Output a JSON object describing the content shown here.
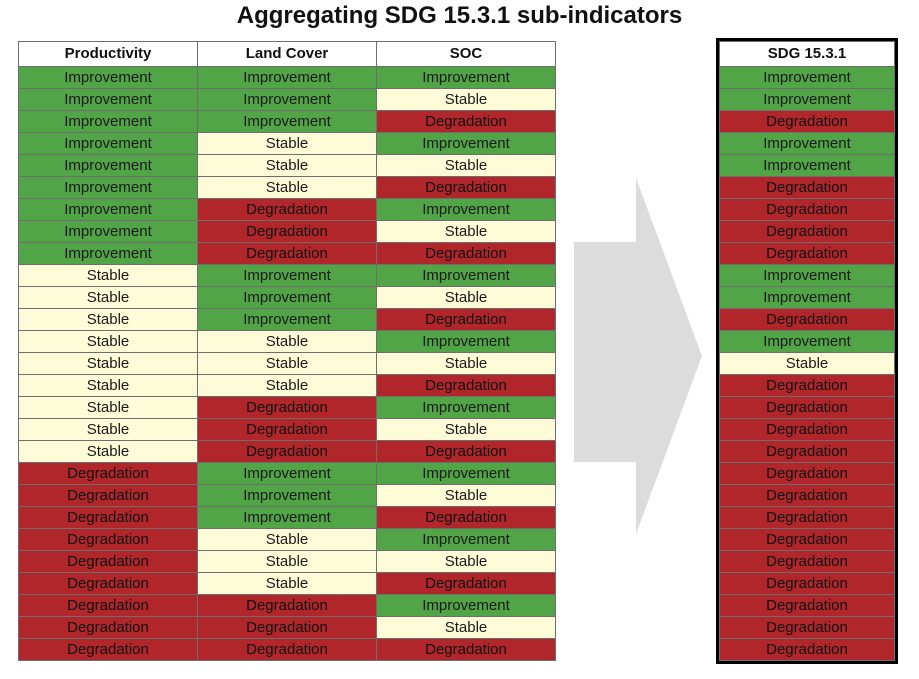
{
  "title": "Aggregating SDG 15.3.1 sub-indicators",
  "headers": [
    "Productivity",
    "Land Cover",
    "SOC"
  ],
  "result_header": "SDG 15.3.1",
  "colors": {
    "Improvement": "#51a546",
    "Stable": "#fefcd8",
    "Degradation": "#b1262a",
    "arrow": "#dcdcdc"
  },
  "rows": [
    [
      "Improvement",
      "Improvement",
      "Improvement"
    ],
    [
      "Improvement",
      "Improvement",
      "Stable"
    ],
    [
      "Improvement",
      "Improvement",
      "Degradation"
    ],
    [
      "Improvement",
      "Stable",
      "Improvement"
    ],
    [
      "Improvement",
      "Stable",
      "Stable"
    ],
    [
      "Improvement",
      "Stable",
      "Degradation"
    ],
    [
      "Improvement",
      "Degradation",
      "Improvement"
    ],
    [
      "Improvement",
      "Degradation",
      "Stable"
    ],
    [
      "Improvement",
      "Degradation",
      "Degradation"
    ],
    [
      "Stable",
      "Improvement",
      "Improvement"
    ],
    [
      "Stable",
      "Improvement",
      "Stable"
    ],
    [
      "Stable",
      "Improvement",
      "Degradation"
    ],
    [
      "Stable",
      "Stable",
      "Improvement"
    ],
    [
      "Stable",
      "Stable",
      "Stable"
    ],
    [
      "Stable",
      "Stable",
      "Degradation"
    ],
    [
      "Stable",
      "Degradation",
      "Improvement"
    ],
    [
      "Stable",
      "Degradation",
      "Stable"
    ],
    [
      "Stable",
      "Degradation",
      "Degradation"
    ],
    [
      "Degradation",
      "Improvement",
      "Improvement"
    ],
    [
      "Degradation",
      "Improvement",
      "Stable"
    ],
    [
      "Degradation",
      "Improvement",
      "Degradation"
    ],
    [
      "Degradation",
      "Stable",
      "Improvement"
    ],
    [
      "Degradation",
      "Stable",
      "Stable"
    ],
    [
      "Degradation",
      "Stable",
      "Degradation"
    ],
    [
      "Degradation",
      "Degradation",
      "Improvement"
    ],
    [
      "Degradation",
      "Degradation",
      "Stable"
    ],
    [
      "Degradation",
      "Degradation",
      "Degradation"
    ]
  ],
  "results": [
    "Improvement",
    "Improvement",
    "Degradation",
    "Improvement",
    "Improvement",
    "Degradation",
    "Degradation",
    "Degradation",
    "Degradation",
    "Improvement",
    "Improvement",
    "Degradation",
    "Improvement",
    "Stable",
    "Degradation",
    "Degradation",
    "Degradation",
    "Degradation",
    "Degradation",
    "Degradation",
    "Degradation",
    "Degradation",
    "Degradation",
    "Degradation",
    "Degradation",
    "Degradation",
    "Degradation"
  ]
}
